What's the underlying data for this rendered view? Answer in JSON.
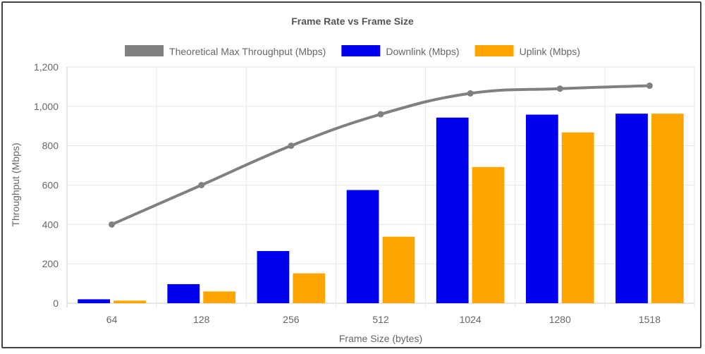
{
  "chart_data": {
    "type": "bar",
    "title": "Frame Rate vs Frame Size",
    "xlabel": "Frame Size (bytes)",
    "ylabel": "Throughput (Mbps)",
    "categories": [
      "64",
      "128",
      "256",
      "512",
      "1024",
      "1280",
      "1518"
    ],
    "ylim": [
      0,
      1200
    ],
    "yticks": [
      0,
      200,
      400,
      600,
      800,
      1000,
      1200
    ],
    "ytick_labels": [
      "0",
      "200",
      "400",
      "600",
      "800",
      "1,000",
      "1,200"
    ],
    "grid": true,
    "legend_position": "top",
    "series": [
      {
        "name": "Theoretical Max Throughput (Mbps)",
        "type": "line",
        "color": "#808080",
        "values": [
          400,
          600,
          800,
          960,
          1066,
          1090,
          1105
        ]
      },
      {
        "name": "Downlink (Mbps)",
        "type": "bar",
        "color": "#0000ee",
        "values": [
          20,
          97,
          265,
          575,
          943,
          958,
          963
        ]
      },
      {
        "name": "Uplink (Mbps)",
        "type": "bar",
        "color": "#ffa500",
        "values": [
          13,
          60,
          152,
          338,
          692,
          868,
          963
        ]
      }
    ]
  }
}
